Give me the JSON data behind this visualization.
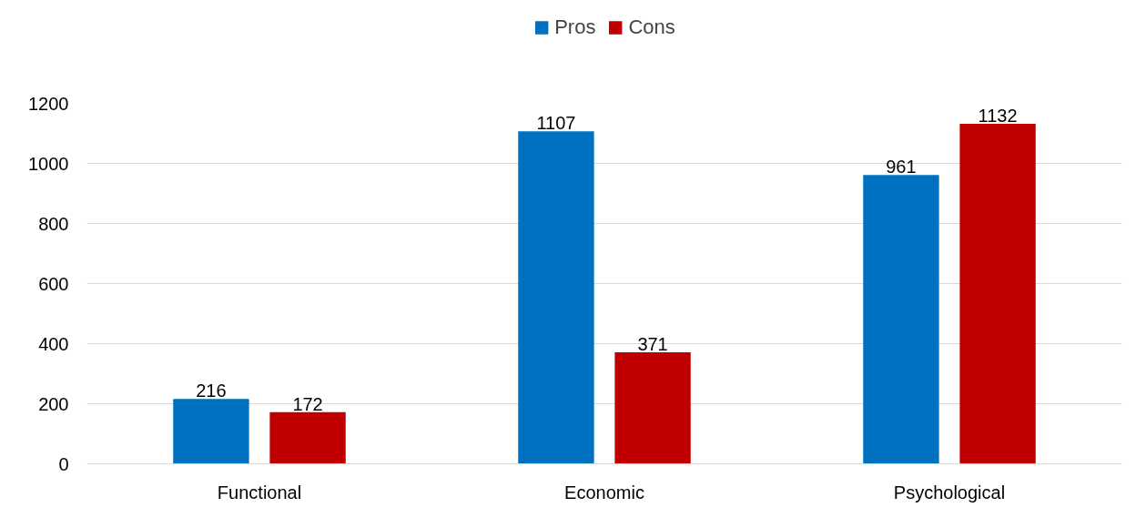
{
  "chart_data": {
    "type": "bar",
    "categories": [
      "Functional",
      "Economic",
      "Psychological"
    ],
    "series": [
      {
        "name": "Pros",
        "color": "#0070c0",
        "values": [
          216,
          1107,
          961
        ]
      },
      {
        "name": "Cons",
        "color": "#c00000",
        "values": [
          172,
          371,
          1132
        ]
      }
    ],
    "ylim": [
      0,
      1200
    ],
    "yticks": [
      0,
      200,
      400,
      600,
      800,
      1000,
      1200
    ],
    "grid": "y",
    "legend": "top",
    "data_labels": true
  }
}
